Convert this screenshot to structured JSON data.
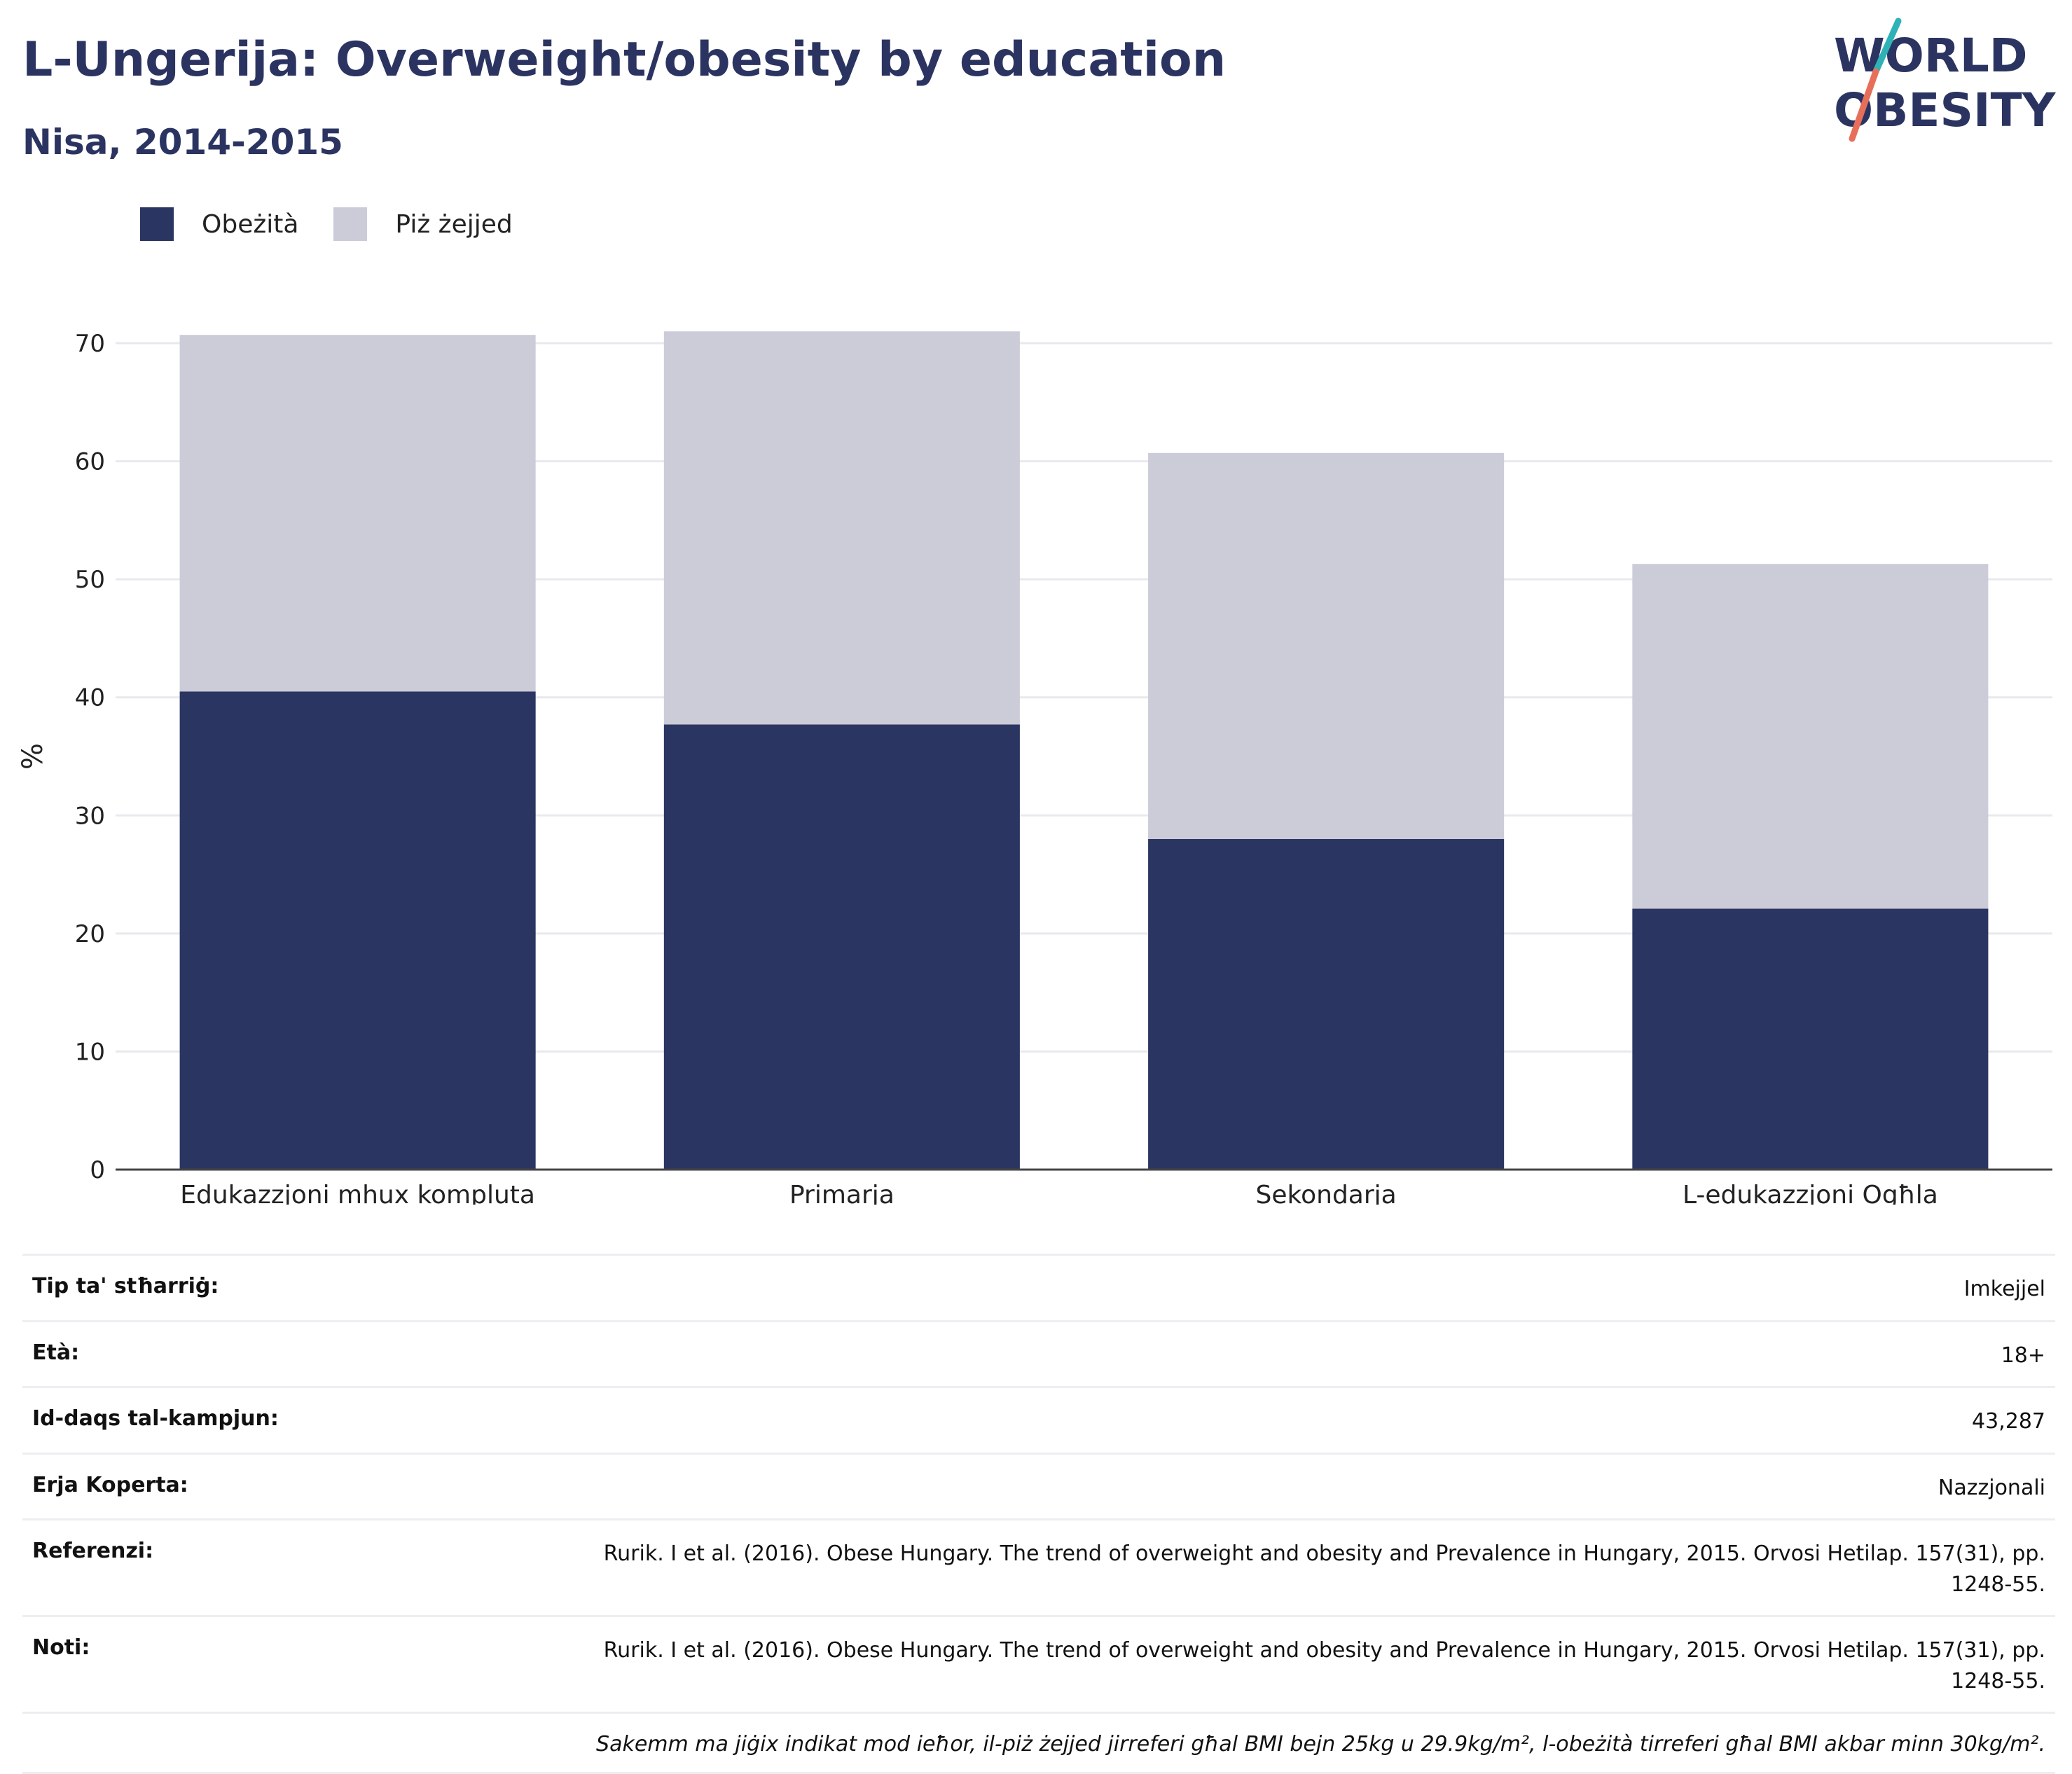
{
  "header": {
    "title": "L-Ungerija: Overweight/obesity by education",
    "subtitle": "Nisa, 2014-2015"
  },
  "logo": {
    "line1": "WORLD",
    "line2": "OBESITY"
  },
  "legend": [
    {
      "label": "Obeżità",
      "color": "#2b3561"
    },
    {
      "label": "Piż żejjed",
      "color": "#cbccd8"
    }
  ],
  "chart_data": {
    "type": "bar",
    "stacked": true,
    "categories": [
      "Edukazzjoni mhux kompluta",
      "Primarja",
      "Sekondarja",
      "L-edukazzjoni Ogħla"
    ],
    "series": [
      {
        "name": "Obeżità",
        "values": [
          40.5,
          37.7,
          28.0,
          22.1
        ],
        "color": "#2b3561"
      },
      {
        "name": "Piż żejjed",
        "values": [
          30.2,
          33.3,
          32.7,
          29.2
        ],
        "color": "#cbccd8"
      }
    ],
    "ylabel": "%",
    "ylim": [
      0,
      70
    ],
    "yticks": [
      0,
      10,
      20,
      30,
      40,
      50,
      60,
      70
    ],
    "grid": true,
    "legend_position": "top-left"
  },
  "info": {
    "rows": [
      {
        "label": "Tip ta' stħarriġ:",
        "value": "Imkejjel"
      },
      {
        "label": "Età:",
        "value": "18+"
      },
      {
        "label": "Id-daqs tal-kampjun:",
        "value": "43,287"
      },
      {
        "label": "Erja Koperta:",
        "value": "Nazzjonali"
      },
      {
        "label": "Referenzi:",
        "value": "Rurik. I et al. (2016). Obese Hungary. The trend of overweight and obesity and Prevalence in Hungary, 2015. Orvosi Hetilap. 157(31), pp. 1248-55."
      },
      {
        "label": "Noti:",
        "value": "Rurik. I et al. (2016). Obese Hungary. The trend of overweight and obesity and Prevalence in Hungary, 2015. Orvosi Hetilap. 157(31), pp. 1248-55."
      }
    ],
    "footnote": "Sakemm ma jiġix indikat mod ieħor, il-piż żejjed jirreferi għal BMI bejn 25kg u 29.9kg/m², l-obeżità tirreferi għal BMI akbar minn 30kg/m²."
  }
}
